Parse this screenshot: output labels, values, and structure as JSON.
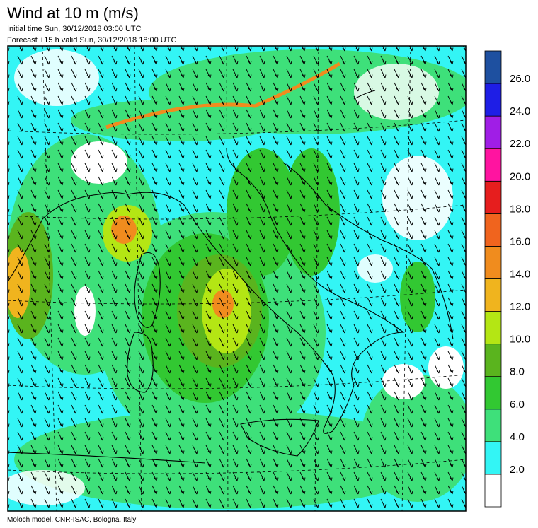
{
  "header": {
    "title": "Wind at 10 m (m/s)",
    "initial_time": "Initial time  Sun, 30/12/2018 03:00 UTC",
    "forecast": "Forecast +15 h valid  Sun, 30/12/2018 18:00 UTC"
  },
  "colorbar": {
    "colors": [
      "#ffffff",
      "#33f5f5",
      "#3ee07a",
      "#32c832",
      "#5ab41e",
      "#b4e614",
      "#f0b41e",
      "#f08c1e",
      "#f0641e",
      "#e61e1e",
      "#ff14a0",
      "#a01ee6",
      "#1e1ee6",
      "#1e50a0"
    ],
    "labels": [
      "2.0",
      "4.0",
      "6.0",
      "8.0",
      "10.0",
      "12.0",
      "14.0",
      "16.0",
      "18.0",
      "20.0",
      "22.0",
      "24.0",
      "26.0"
    ]
  },
  "footer": "Moloch model, CNR-ISAC, Bologna, Italy"
}
